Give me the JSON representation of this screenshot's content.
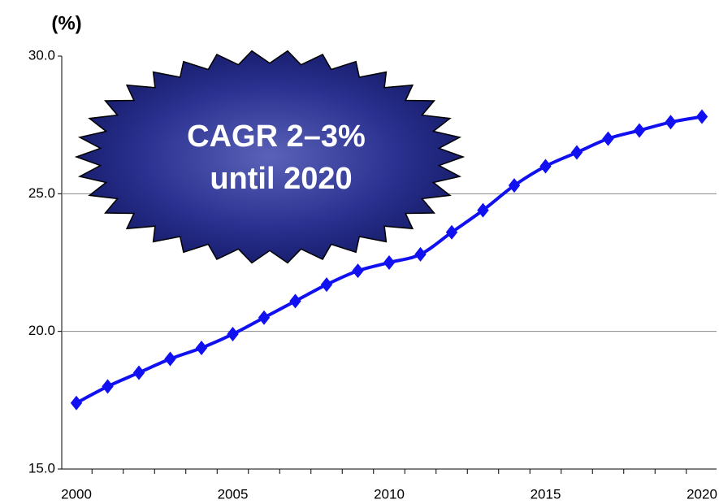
{
  "chart_data": {
    "type": "line",
    "y_label": "(%)",
    "annotation": [
      "CAGR  2–3%",
      "until 2020"
    ],
    "categories": [
      "2000",
      null,
      null,
      null,
      null,
      "2005",
      null,
      null,
      null,
      null,
      "2010",
      null,
      null,
      null,
      null,
      "2015",
      null,
      null,
      null,
      null,
      "2020"
    ],
    "series": [
      {
        "color": "#1010f0",
        "values": [
          17.4,
          18.0,
          18.5,
          19.0,
          19.4,
          19.9,
          20.5,
          21.1,
          21.7,
          22.2,
          22.5,
          22.8,
          23.6,
          24.4,
          25.3,
          26.0,
          26.5,
          27.0,
          27.3,
          27.6,
          27.8
        ]
      }
    ],
    "ylim": [
      15,
      30
    ],
    "yticks": [
      {
        "value": 15,
        "label": "15.0"
      },
      {
        "value": 20,
        "label": "20.0"
      },
      {
        "value": 25,
        "label": "25.0"
      },
      {
        "value": 30,
        "label": "30.0"
      }
    ],
    "grid": true
  }
}
